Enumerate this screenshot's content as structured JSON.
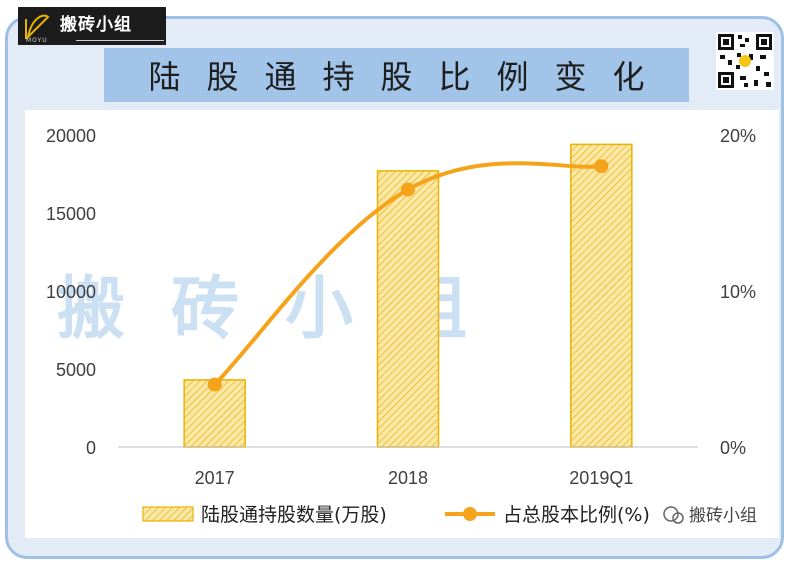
{
  "header": {
    "logo_text": "搬砖小组",
    "logo_sub": "MOYU",
    "title": "陆股通持股比例变化"
  },
  "watermarks": {
    "center": "搬砖小组",
    "corner": "搬砖小组"
  },
  "colors": {
    "bar_fill": "#fbe7a8",
    "bar_hatch": "#e8b400",
    "bar_border": "#e8b400",
    "line": "#f5a31a",
    "frame": "#9cc0e6",
    "title_bg": "#a2c4e8",
    "watermark": "#bcd6ef"
  },
  "chart_data": {
    "type": "bar",
    "categories": [
      "2017",
      "2018",
      "2019Q1"
    ],
    "series": [
      {
        "name": "陆股通持股数量(万股)",
        "type": "bar",
        "axis": "left",
        "values": [
          4300,
          17700,
          19400
        ]
      },
      {
        "name": "占总股本比例(%)",
        "type": "line",
        "axis": "right",
        "values": [
          4.0,
          16.5,
          18.0
        ]
      }
    ],
    "y_left": {
      "min": 0,
      "max": 20000,
      "ticks": [
        "0",
        "5000",
        "10000",
        "15000",
        "20000"
      ]
    },
    "y_right": {
      "min": 0,
      "max": 20,
      "ticks": [
        "0%",
        "10%",
        "20%"
      ]
    },
    "grid": false,
    "legend_position": "bottom"
  }
}
